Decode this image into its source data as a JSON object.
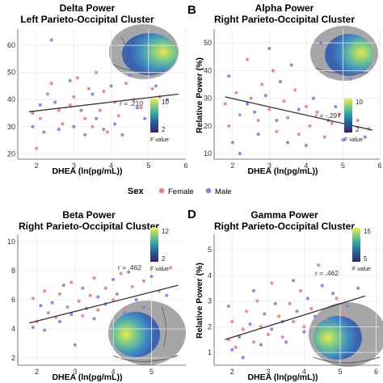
{
  "legend": {
    "title": "Sex",
    "items": [
      {
        "label": "Female",
        "color": "#f08080"
      },
      {
        "label": "Male",
        "color": "#8080ee"
      }
    ]
  },
  "chart_data": [
    {
      "panel_label": "",
      "type": "scatter",
      "title": "Delta Power",
      "subtitle": "Left Parieto-Occipital Cluster",
      "xlabel": "DHEA (ln(pg/mL))",
      "ylabel": "",
      "xlim": [
        1.5,
        6
      ],
      "ylim": [
        18,
        66
      ],
      "xticks": [
        2,
        3,
        4,
        5,
        6
      ],
      "yticks": [
        20,
        30,
        40,
        50,
        60
      ],
      "r_label": "r = .210",
      "trend": [
        [
          1.8,
          35.5
        ],
        [
          5.8,
          42
        ]
      ],
      "colorbar": {
        "ticks": [
          10,
          2
        ],
        "title": "F value"
      },
      "series": [
        {
          "name": "Female",
          "points": [
            [
              1.9,
              35
            ],
            [
              2.0,
              22
            ],
            [
              2.1,
              33
            ],
            [
              2.3,
              42
            ],
            [
              2.4,
              46
            ],
            [
              2.6,
              36
            ],
            [
              2.7,
              31
            ],
            [
              2.9,
              38
            ],
            [
              3.0,
              41
            ],
            [
              3.1,
              48
            ],
            [
              3.3,
              33
            ],
            [
              3.4,
              44
            ],
            [
              3.5,
              30
            ],
            [
              3.6,
              50
            ],
            [
              3.7,
              36
            ],
            [
              3.8,
              43
            ],
            [
              3.9,
              28
            ],
            [
              4.1,
              39
            ],
            [
              4.2,
              34
            ],
            [
              4.4,
              46
            ],
            [
              4.6,
              40
            ],
            [
              4.8,
              37
            ],
            [
              5.1,
              44
            ],
            [
              5.3,
              41
            ]
          ]
        },
        {
          "name": "Male",
          "points": [
            [
              1.9,
              30
            ],
            [
              2.1,
              38
            ],
            [
              2.2,
              28
            ],
            [
              2.4,
              62
            ],
            [
              2.5,
              39
            ],
            [
              2.6,
              29
            ],
            [
              2.9,
              47
            ],
            [
              3.0,
              30
            ],
            [
              3.2,
              36
            ],
            [
              3.3,
              27
            ],
            [
              3.5,
              42
            ],
            [
              3.6,
              33
            ],
            [
              3.8,
              29
            ],
            [
              4.0,
              45
            ],
            [
              4.1,
              31
            ],
            [
              4.3,
              27
            ],
            [
              4.5,
              49
            ],
            [
              4.7,
              37
            ],
            [
              4.9,
              33
            ],
            [
              5.2,
              45
            ],
            [
              5.5,
              40
            ]
          ]
        }
      ]
    },
    {
      "panel_label": "B",
      "type": "scatter",
      "title": "Alpha Power",
      "subtitle": "Right Parieto-Occipital Cluster",
      "xlabel": "DHEA (ln(pg/mL))",
      "ylabel": "Relative Power (%)",
      "xlim": [
        1.5,
        6
      ],
      "ylim": [
        8,
        55
      ],
      "xticks": [
        2,
        3,
        4,
        5,
        6
      ],
      "yticks": [
        10,
        20,
        30,
        40,
        50
      ],
      "r_label": "r = -.297",
      "trend": [
        [
          1.8,
          30.5
        ],
        [
          5.8,
          18.5
        ]
      ],
      "colorbar": {
        "ticks": [
          10,
          2
        ],
        "title": "F value"
      },
      "series": [
        {
          "name": "Female",
          "points": [
            [
              1.8,
              28
            ],
            [
              1.9,
              20
            ],
            [
              2.1,
              32
            ],
            [
              2.2,
              24
            ],
            [
              2.4,
              44
            ],
            [
              2.5,
              30
            ],
            [
              2.7,
              22
            ],
            [
              2.8,
              35
            ],
            [
              3.0,
              26
            ],
            [
              3.1,
              40
            ],
            [
              3.2,
              18
            ],
            [
              3.4,
              29
            ],
            [
              3.5,
              23
            ],
            [
              3.7,
              33
            ],
            [
              3.8,
              17
            ],
            [
              4.0,
              27
            ],
            [
              4.1,
              20
            ],
            [
              4.3,
              25
            ],
            [
              4.5,
              16
            ],
            [
              4.7,
              21
            ],
            [
              4.9,
              24
            ],
            [
              5.1,
              18
            ],
            [
              5.4,
              22
            ],
            [
              5.7,
              19
            ]
          ]
        },
        {
          "name": "Male",
          "points": [
            [
              1.9,
              38
            ],
            [
              2.0,
              14
            ],
            [
              2.2,
              10
            ],
            [
              2.4,
              28
            ],
            [
              2.6,
              25
            ],
            [
              2.7,
              17
            ],
            [
              2.9,
              31
            ],
            [
              3.0,
              48
            ],
            [
              3.2,
              22
            ],
            [
              3.3,
              36
            ],
            [
              3.5,
              14
            ],
            [
              3.6,
              42
            ],
            [
              3.8,
              26
            ],
            [
              4.0,
              13
            ],
            [
              4.2,
              30
            ],
            [
              4.4,
              50
            ],
            [
              4.6,
              22
            ],
            [
              4.8,
              27
            ],
            [
              5.0,
              15
            ],
            [
              5.2,
              37
            ],
            [
              5.6,
              16
            ]
          ]
        }
      ]
    },
    {
      "panel_label": "",
      "type": "scatter",
      "title": "Beta Power",
      "subtitle": "Right Parieto-Occipital Cluster",
      "xlabel": "DHEA (ln(pg/mL))",
      "ylabel": "",
      "xlim": [
        1.5,
        5.9
      ],
      "ylim": [
        1.5,
        10.5
      ],
      "xticks": [
        2,
        3,
        4,
        5
      ],
      "yticks": [
        2,
        4,
        6,
        8,
        10
      ],
      "r_label": "r = .462",
      "trend": [
        [
          1.8,
          4.4
        ],
        [
          5.7,
          7.0
        ]
      ],
      "colorbar": {
        "ticks": [
          12,
          2
        ],
        "title": "F value"
      },
      "series": [
        {
          "name": "Female",
          "points": [
            [
              1.9,
              6.1
            ],
            [
              2.0,
              4.5
            ],
            [
              2.2,
              6.6
            ],
            [
              2.3,
              5.1
            ],
            [
              2.5,
              4.8
            ],
            [
              2.6,
              6.4
            ],
            [
              2.8,
              5.5
            ],
            [
              2.9,
              7.2
            ],
            [
              3.1,
              5.9
            ],
            [
              3.2,
              4.9
            ],
            [
              3.4,
              6.3
            ],
            [
              3.5,
              7.5
            ],
            [
              3.6,
              5.3
            ],
            [
              3.8,
              6.8
            ],
            [
              4.0,
              6.0
            ],
            [
              4.2,
              7.8
            ],
            [
              4.3,
              5.4
            ],
            [
              4.5,
              6.9
            ],
            [
              4.8,
              7.3
            ],
            [
              5.0,
              9.3
            ],
            [
              5.2,
              6.6
            ],
            [
              5.5,
              8.2
            ]
          ]
        },
        {
          "name": "Male",
          "points": [
            [
              1.9,
              4.1
            ],
            [
              2.1,
              5.6
            ],
            [
              2.2,
              3.9
            ],
            [
              2.4,
              5.8
            ],
            [
              2.6,
              4.5
            ],
            [
              2.7,
              7.0
            ],
            [
              2.9,
              5.0
            ],
            [
              3.0,
              2.9
            ],
            [
              3.2,
              6.8
            ],
            [
              3.3,
              5.4
            ],
            [
              3.5,
              4.7
            ],
            [
              3.6,
              6.2
            ],
            [
              3.8,
              5.7
            ],
            [
              4.0,
              7.4
            ],
            [
              4.1,
              6.4
            ],
            [
              4.3,
              5.1
            ],
            [
              4.4,
              7.9
            ],
            [
              4.6,
              6.0
            ],
            [
              4.8,
              5.5
            ],
            [
              5.0,
              7.6
            ],
            [
              5.4,
              6.3
            ]
          ]
        }
      ]
    },
    {
      "panel_label": "D",
      "type": "scatter",
      "title": "Gamma Power",
      "subtitle": "Right Parieto-Occipital Cluster",
      "xlabel": "DHEA (ln(pg/mL))",
      "ylabel": "Relative Power (%)",
      "xlim": [
        1.5,
        6.1
      ],
      "ylim": [
        0.5,
        5.6
      ],
      "xticks": [
        2,
        3,
        4,
        5,
        6
      ],
      "yticks": [
        1,
        2,
        3,
        4,
        5
      ],
      "r_label": "r = .462",
      "trend": [
        [
          1.8,
          1.5
        ],
        [
          5.7,
          3.2
        ]
      ],
      "colorbar": {
        "ticks": [
          15,
          5
        ],
        "title": "F value"
      },
      "series": [
        {
          "name": "Female",
          "points": [
            [
              1.9,
              1.5
            ],
            [
              2.0,
              2.2
            ],
            [
              2.1,
              1.2
            ],
            [
              2.3,
              1.9
            ],
            [
              2.4,
              2.6
            ],
            [
              2.6,
              1.4
            ],
            [
              2.7,
              3.0
            ],
            [
              2.8,
              2.0
            ],
            [
              3.0,
              1.7
            ],
            [
              3.1,
              3.7
            ],
            [
              3.3,
              2.4
            ],
            [
              3.4,
              1.6
            ],
            [
              3.6,
              2.9
            ],
            [
              3.7,
              2.2
            ],
            [
              3.9,
              3.4
            ],
            [
              4.0,
              2.0
            ],
            [
              4.2,
              2.7
            ],
            [
              4.4,
              4.4
            ],
            [
              4.6,
              2.3
            ],
            [
              4.9,
              3.1
            ],
            [
              5.1,
              2.5
            ]
          ]
        },
        {
          "name": "Male",
          "points": [
            [
              1.9,
              2.8
            ],
            [
              2.0,
              1.1
            ],
            [
              2.2,
              1.6
            ],
            [
              2.3,
              0.8
            ],
            [
              2.5,
              2.1
            ],
            [
              2.6,
              3.4
            ],
            [
              2.8,
              1.3
            ],
            [
              2.9,
              2.5
            ],
            [
              3.1,
              1.9
            ],
            [
              3.2,
              2.9
            ],
            [
              3.4,
              2.2
            ],
            [
              3.5,
              1.4
            ],
            [
              3.7,
              3.8
            ],
            [
              3.8,
              2.6
            ],
            [
              4.0,
              1.8
            ],
            [
              4.1,
              3.1
            ],
            [
              4.3,
              2.4
            ],
            [
              4.5,
              3.6
            ],
            [
              4.7,
              2.1
            ],
            [
              4.8,
              3.3
            ],
            [
              5.2,
              2.8
            ],
            [
              5.5,
              3.5
            ]
          ]
        }
      ]
    }
  ]
}
